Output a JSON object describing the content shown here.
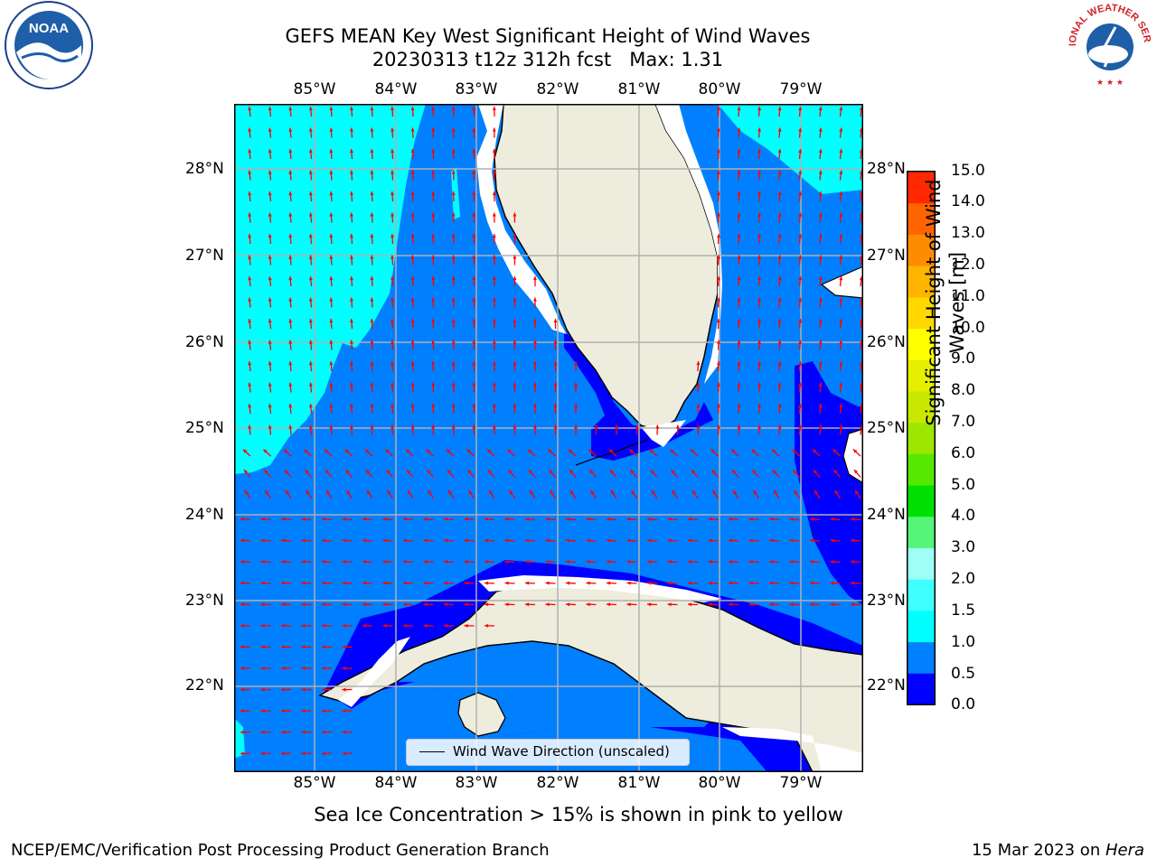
{
  "title": {
    "line1": "GEFS MEAN Key West Significant Height of Wind Waves",
    "line2": "20230313 t12z 312h fcst   Max: 1.31"
  },
  "map": {
    "lon_labels": [
      "85°W",
      "84°W",
      "83°W",
      "82°W",
      "81°W",
      "80°W",
      "79°W"
    ],
    "lat_labels": [
      "28°N",
      "27°N",
      "26°N",
      "25°N",
      "24°N",
      "23°N",
      "22°N"
    ],
    "legend": "Wind Wave Direction (unscaled)",
    "colors": {
      "land": "#eeecdc",
      "bin_0_0.5": "#0000ff",
      "bin_0.5_1.0": "#0080ff",
      "bin_1.0_1.5": "#00ffff",
      "bin_1.5_2.0": "#40ffff",
      "arrow": "#ff0000",
      "grid": "#b0b0b0"
    }
  },
  "colorbar": {
    "label": "Significant Height of Wind Waves [m]",
    "ticks": [
      "0.0",
      "0.5",
      "1.0",
      "1.5",
      "2.0",
      "3.0",
      "4.0",
      "5.0",
      "6.0",
      "7.0",
      "8.0",
      "9.0",
      "10.0",
      "11.0",
      "12.0",
      "13.0",
      "14.0",
      "15.0"
    ],
    "colors": [
      "#0000ff",
      "#0080ff",
      "#00ffff",
      "#40ffff",
      "#9ffff7",
      "#55f57a",
      "#00e000",
      "#55e800",
      "#9ce600",
      "#c8e800",
      "#e6ef00",
      "#ffff00",
      "#ffd800",
      "#ffb400",
      "#ff8c00",
      "#ff6400",
      "#ff2800"
    ]
  },
  "subcaption": "Sea Ice Concentration > 15% is shown in pink to yellow",
  "footer": {
    "left": "NCEP/EMC/Verification Post Processing Product Generation Branch",
    "right_prefix": "15 Mar 2023 on ",
    "right_host": "Hera"
  },
  "logos": {
    "left": "NOAA",
    "right": "NATIONAL WEATHER SERVICE"
  }
}
